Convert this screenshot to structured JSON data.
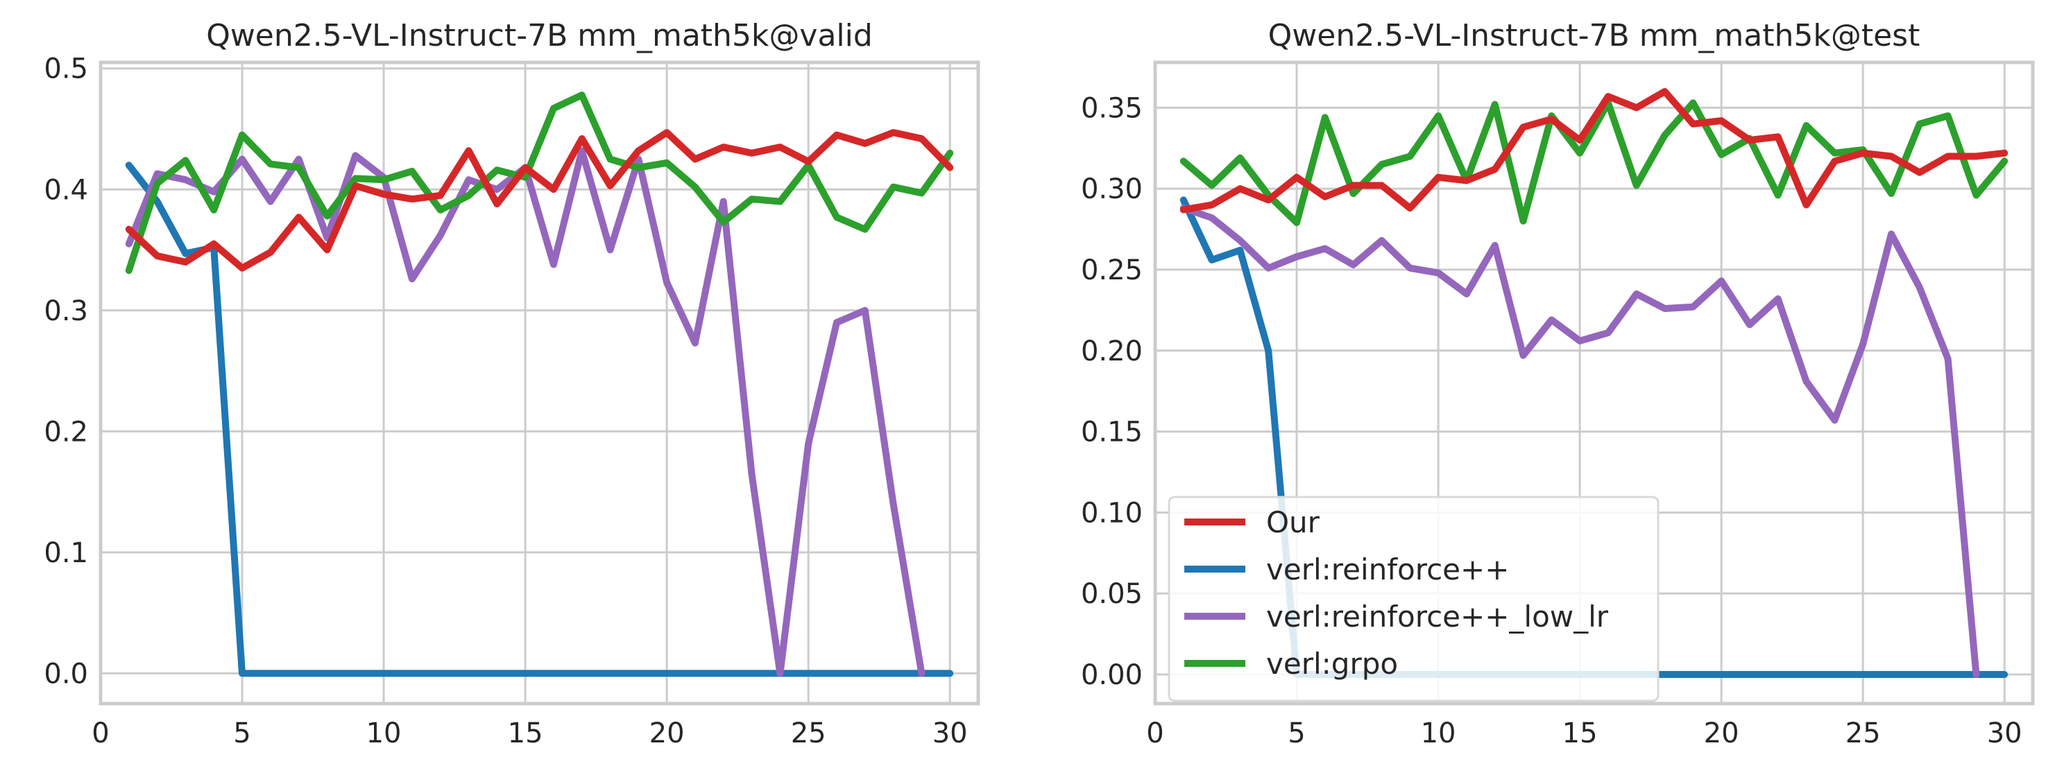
{
  "chart_data": [
    {
      "type": "line",
      "title": "Qwen2.5-VL-Instruct-7B mm_math5k@valid",
      "xlabel": "",
      "ylabel": "",
      "xlim": [
        0,
        31
      ],
      "ylim": [
        -0.025,
        0.505
      ],
      "xticks": [
        0,
        5,
        10,
        15,
        20,
        25,
        30
      ],
      "xtick_labels": [
        "0",
        "5",
        "10",
        "15",
        "20",
        "25",
        "30"
      ],
      "yticks": [
        0.0,
        0.1,
        0.2,
        0.3,
        0.4,
        0.5
      ],
      "ytick_labels": [
        "0.0",
        "0.1",
        "0.2",
        "0.3",
        "0.4",
        "0.5"
      ],
      "grid": true,
      "x": [
        1,
        2,
        3,
        4,
        5,
        6,
        7,
        8,
        9,
        10,
        11,
        12,
        13,
        14,
        15,
        16,
        17,
        18,
        19,
        20,
        21,
        22,
        23,
        24,
        25,
        26,
        27,
        28,
        29,
        30
      ],
      "series": [
        {
          "name": "verl:reinforce++",
          "color": "#1f77b4",
          "values": [
            0.42,
            0.39,
            0.347,
            0.352,
            0.0,
            0.0,
            0.0,
            0.0,
            0.0,
            0.0,
            0.0,
            0.0,
            0.0,
            0.0,
            0.0,
            0.0,
            0.0,
            0.0,
            0.0,
            0.0,
            0.0,
            0.0,
            0.0,
            0.0,
            0.0,
            0.0,
            0.0,
            0.0,
            0.0,
            0.0
          ]
        },
        {
          "name": "verl:reinforce++_low_lr",
          "color": "#9467bd",
          "values": [
            0.355,
            0.413,
            0.408,
            0.398,
            0.425,
            0.39,
            0.425,
            0.36,
            0.428,
            0.41,
            0.326,
            0.362,
            0.408,
            0.4,
            0.418,
            0.338,
            0.432,
            0.35,
            0.425,
            0.323,
            0.273,
            0.39,
            0.165,
            0.0,
            0.19,
            0.29,
            0.3,
            0.14,
            0.0,
            null
          ]
        },
        {
          "name": "verl:grpo",
          "color": "#2ca02c",
          "values": [
            0.333,
            0.405,
            0.424,
            0.383,
            0.445,
            0.421,
            0.418,
            0.378,
            0.409,
            0.408,
            0.415,
            0.383,
            0.395,
            0.416,
            0.41,
            0.467,
            0.478,
            0.425,
            0.418,
            0.422,
            0.402,
            0.373,
            0.392,
            0.39,
            0.42,
            0.377,
            0.367,
            0.402,
            0.397,
            0.43
          ]
        },
        {
          "name": "Our",
          "color": "#d62728",
          "values": [
            0.367,
            0.345,
            0.34,
            0.355,
            0.335,
            0.348,
            0.377,
            0.35,
            0.403,
            0.396,
            0.392,
            0.395,
            0.432,
            0.388,
            0.418,
            0.4,
            0.442,
            0.403,
            0.432,
            0.447,
            0.425,
            0.435,
            0.43,
            0.435,
            0.423,
            0.445,
            0.438,
            0.447,
            0.442,
            0.418
          ]
        }
      ]
    },
    {
      "type": "line",
      "title": "Qwen2.5-VL-Instruct-7B mm_math5k@test",
      "xlabel": "",
      "ylabel": "",
      "xlim": [
        0,
        31
      ],
      "ylim": [
        -0.018,
        0.378
      ],
      "xticks": [
        0,
        5,
        10,
        15,
        20,
        25,
        30
      ],
      "xtick_labels": [
        "0",
        "5",
        "10",
        "15",
        "20",
        "25",
        "30"
      ],
      "yticks": [
        0.0,
        0.05,
        0.1,
        0.15,
        0.2,
        0.25,
        0.3,
        0.35
      ],
      "ytick_labels": [
        "0.00",
        "0.05",
        "0.10",
        "0.15",
        "0.20",
        "0.25",
        "0.30",
        "0.35"
      ],
      "grid": true,
      "legend": "lower-left",
      "x": [
        1,
        2,
        3,
        4,
        5,
        6,
        7,
        8,
        9,
        10,
        11,
        12,
        13,
        14,
        15,
        16,
        17,
        18,
        19,
        20,
        21,
        22,
        23,
        24,
        25,
        26,
        27,
        28,
        29,
        30
      ],
      "series": [
        {
          "name": "verl:reinforce++",
          "color": "#1f77b4",
          "values": [
            0.293,
            0.256,
            0.262,
            0.2,
            0.0,
            0.0,
            0.0,
            0.0,
            0.0,
            0.0,
            0.0,
            0.0,
            0.0,
            0.0,
            0.0,
            0.0,
            0.0,
            0.0,
            0.0,
            0.0,
            0.0,
            0.0,
            0.0,
            0.0,
            0.0,
            0.0,
            0.0,
            0.0,
            0.0,
            0.0
          ]
        },
        {
          "name": "verl:reinforce++_low_lr",
          "color": "#9467bd",
          "values": [
            0.288,
            0.282,
            0.268,
            0.251,
            0.258,
            0.263,
            0.253,
            0.268,
            0.251,
            0.248,
            0.235,
            0.265,
            0.197,
            0.219,
            0.206,
            0.211,
            0.235,
            0.226,
            0.227,
            0.243,
            0.216,
            0.232,
            0.181,
            0.157,
            0.204,
            0.272,
            0.239,
            0.195,
            0.0,
            null
          ]
        },
        {
          "name": "verl:grpo",
          "color": "#2ca02c",
          "values": [
            0.317,
            0.302,
            0.319,
            0.296,
            0.279,
            0.344,
            0.297,
            0.315,
            0.32,
            0.345,
            0.305,
            0.352,
            0.28,
            0.345,
            0.322,
            0.353,
            0.302,
            0.333,
            0.353,
            0.321,
            0.331,
            0.296,
            0.339,
            0.322,
            0.324,
            0.297,
            0.34,
            0.345,
            0.296,
            0.317
          ]
        },
        {
          "name": "Our",
          "color": "#d62728",
          "values": [
            0.287,
            0.29,
            0.3,
            0.293,
            0.307,
            0.295,
            0.302,
            0.302,
            0.288,
            0.307,
            0.305,
            0.312,
            0.338,
            0.343,
            0.33,
            0.357,
            0.35,
            0.36,
            0.34,
            0.342,
            0.33,
            0.332,
            0.29,
            0.317,
            0.322,
            0.32,
            0.31,
            0.32,
            0.32,
            0.322
          ]
        }
      ],
      "legend_order": [
        "Our",
        "verl:reinforce++",
        "verl:reinforce++_low_lr",
        "verl:grpo"
      ]
    }
  ]
}
